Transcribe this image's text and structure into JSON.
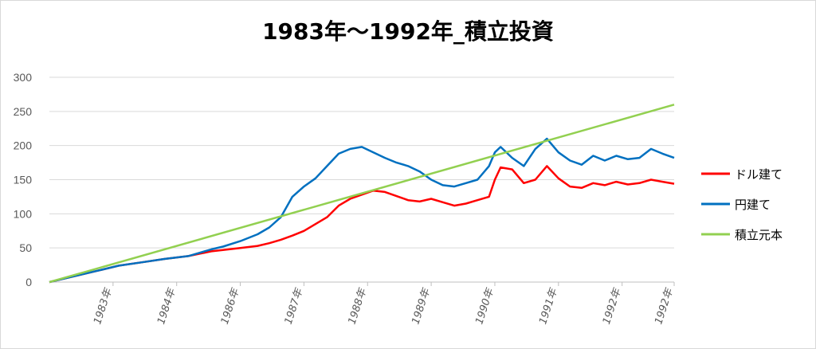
{
  "chart_data": {
    "type": "line",
    "title": "1983年～1992年_積立投資",
    "xlabel": "",
    "ylabel": "",
    "ylim": [
      0,
      300
    ],
    "yticks": [
      0,
      50,
      100,
      150,
      200,
      250,
      300
    ],
    "xlim": [
      0,
      108
    ],
    "xtick_labels": [
      "1983年",
      "1984年",
      "1986年",
      "1987年",
      "1988年",
      "1989年",
      "1990年",
      "1991年",
      "1992年",
      "1992年"
    ],
    "xtick_positions": [
      11,
      22,
      33,
      44,
      55,
      66,
      77,
      88,
      99,
      108
    ],
    "grid": true,
    "legend_position": "right",
    "series": [
      {
        "name": "ドル建て",
        "color": "#ff0000",
        "x": [
          0,
          4,
          8,
          12,
          16,
          20,
          24,
          28,
          30,
          33,
          36,
          38,
          40,
          42,
          44,
          46,
          48,
          50,
          52,
          54,
          56,
          58,
          60,
          62,
          64,
          66,
          68,
          70,
          72,
          74,
          76,
          77,
          78,
          80,
          82,
          84,
          86,
          88,
          90,
          92,
          94,
          96,
          98,
          100,
          102,
          104,
          106,
          108
        ],
        "values": [
          0,
          8,
          16,
          24,
          29,
          34,
          38,
          45,
          47,
          50,
          53,
          57,
          62,
          68,
          75,
          85,
          95,
          112,
          122,
          128,
          134,
          132,
          126,
          120,
          118,
          122,
          117,
          112,
          115,
          120,
          125,
          150,
          168,
          165,
          145,
          150,
          170,
          152,
          140,
          138,
          145,
          142,
          147,
          143,
          145,
          150,
          147,
          144
        ]
      },
      {
        "name": "円建て",
        "color": "#0070c0",
        "x": [
          0,
          4,
          8,
          12,
          16,
          20,
          24,
          28,
          30,
          33,
          36,
          38,
          40,
          42,
          44,
          46,
          48,
          50,
          52,
          54,
          56,
          58,
          60,
          62,
          64,
          66,
          68,
          70,
          72,
          74,
          76,
          77,
          78,
          80,
          82,
          84,
          86,
          88,
          90,
          92,
          94,
          96,
          98,
          100,
          102,
          104,
          106,
          108
        ],
        "values": [
          0,
          8,
          16,
          24,
          29,
          34,
          38,
          48,
          52,
          60,
          70,
          80,
          95,
          125,
          140,
          152,
          170,
          188,
          195,
          198,
          190,
          182,
          175,
          170,
          162,
          150,
          142,
          140,
          145,
          150,
          170,
          190,
          198,
          182,
          170,
          195,
          210,
          190,
          178,
          172,
          185,
          178,
          185,
          180,
          182,
          195,
          188,
          182
        ]
      },
      {
        "name": "積立元本",
        "color": "#92d050",
        "x": [
          0,
          108
        ],
        "values": [
          0,
          260
        ]
      }
    ]
  }
}
